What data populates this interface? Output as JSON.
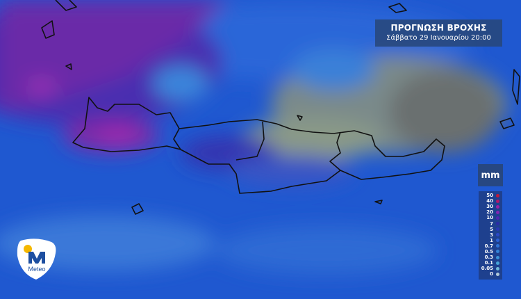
{
  "title": {
    "heading": "ΠΡΟΓΝΩΣΗ ΒΡΟΧΗΣ",
    "subtitle": "Σάββατο 29 Ιανουαρίου 20:00"
  },
  "legend": {
    "unit": "mm",
    "items": [
      {
        "label": "50",
        "color": "#c0183a"
      },
      {
        "label": "40",
        "color": "#b0186a"
      },
      {
        "label": "30",
        "color": "#a020a0"
      },
      {
        "label": "20",
        "color": "#8424b4"
      },
      {
        "label": "10",
        "color": "#5224b0"
      },
      {
        "label": "7",
        "color": "#2a2aa8"
      },
      {
        "label": "5",
        "color": "#2836b8"
      },
      {
        "label": "3",
        "color": "#2a48c8"
      },
      {
        "label": "1",
        "color": "#2a60d8"
      },
      {
        "label": "0.7",
        "color": "#2e74d8"
      },
      {
        "label": "0.5",
        "color": "#3484d8"
      },
      {
        "label": "0.3",
        "color": "#3a94d8"
      },
      {
        "label": "0.1",
        "color": "#46a4d8"
      },
      {
        "label": "0.05",
        "color": "#70b8d8"
      },
      {
        "label": "0",
        "color": "#b0c8d8"
      }
    ]
  },
  "logo": {
    "text": "Meteo",
    "brand_color": "#1e4fa0",
    "sun_color": "#f5b800"
  }
}
